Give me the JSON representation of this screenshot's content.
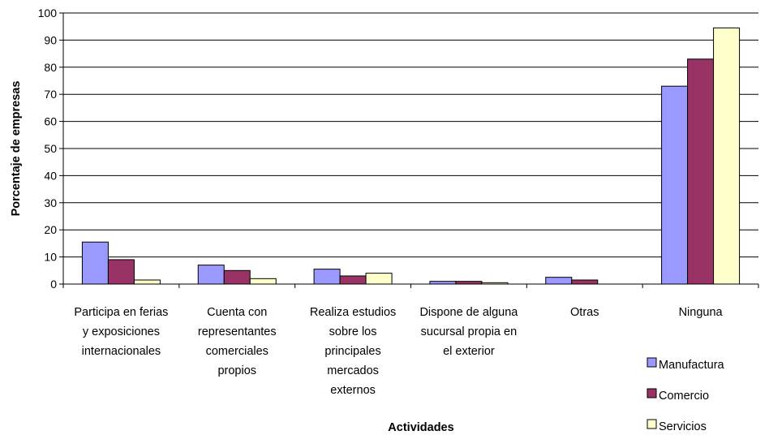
{
  "chart_data": {
    "type": "bar",
    "title": "",
    "xlabel": "Actividades",
    "ylabel": "Porcentaje de empresas",
    "ylim": [
      0,
      100
    ],
    "yticks": [
      0,
      10,
      20,
      30,
      40,
      50,
      60,
      70,
      80,
      90,
      100
    ],
    "grid": "horizontal",
    "legend_position": "bottom-right",
    "categories": [
      [
        "Participa en ferias",
        "y exposiciones",
        "internacionales"
      ],
      [
        "Cuenta con",
        "representantes",
        "comerciales",
        "propios"
      ],
      [
        "Realiza estudios",
        "sobre los",
        "principales",
        "mercados",
        "externos"
      ],
      [
        "Dispone de alguna",
        "sucursal propia en",
        "el exterior"
      ],
      [
        "Otras"
      ],
      [
        "Ninguna"
      ]
    ],
    "series": [
      {
        "name": "Manufactura",
        "color": "#9999ff",
        "values": [
          15.5,
          7.0,
          5.5,
          1.0,
          2.5,
          73.0
        ]
      },
      {
        "name": "Comercio",
        "color": "#993366",
        "values": [
          9.0,
          5.0,
          3.0,
          1.0,
          1.5,
          83.0
        ]
      },
      {
        "name": "Servicios",
        "color": "#ffffcc",
        "values": [
          1.5,
          2.0,
          4.0,
          0.5,
          0.0,
          94.5
        ]
      }
    ]
  }
}
